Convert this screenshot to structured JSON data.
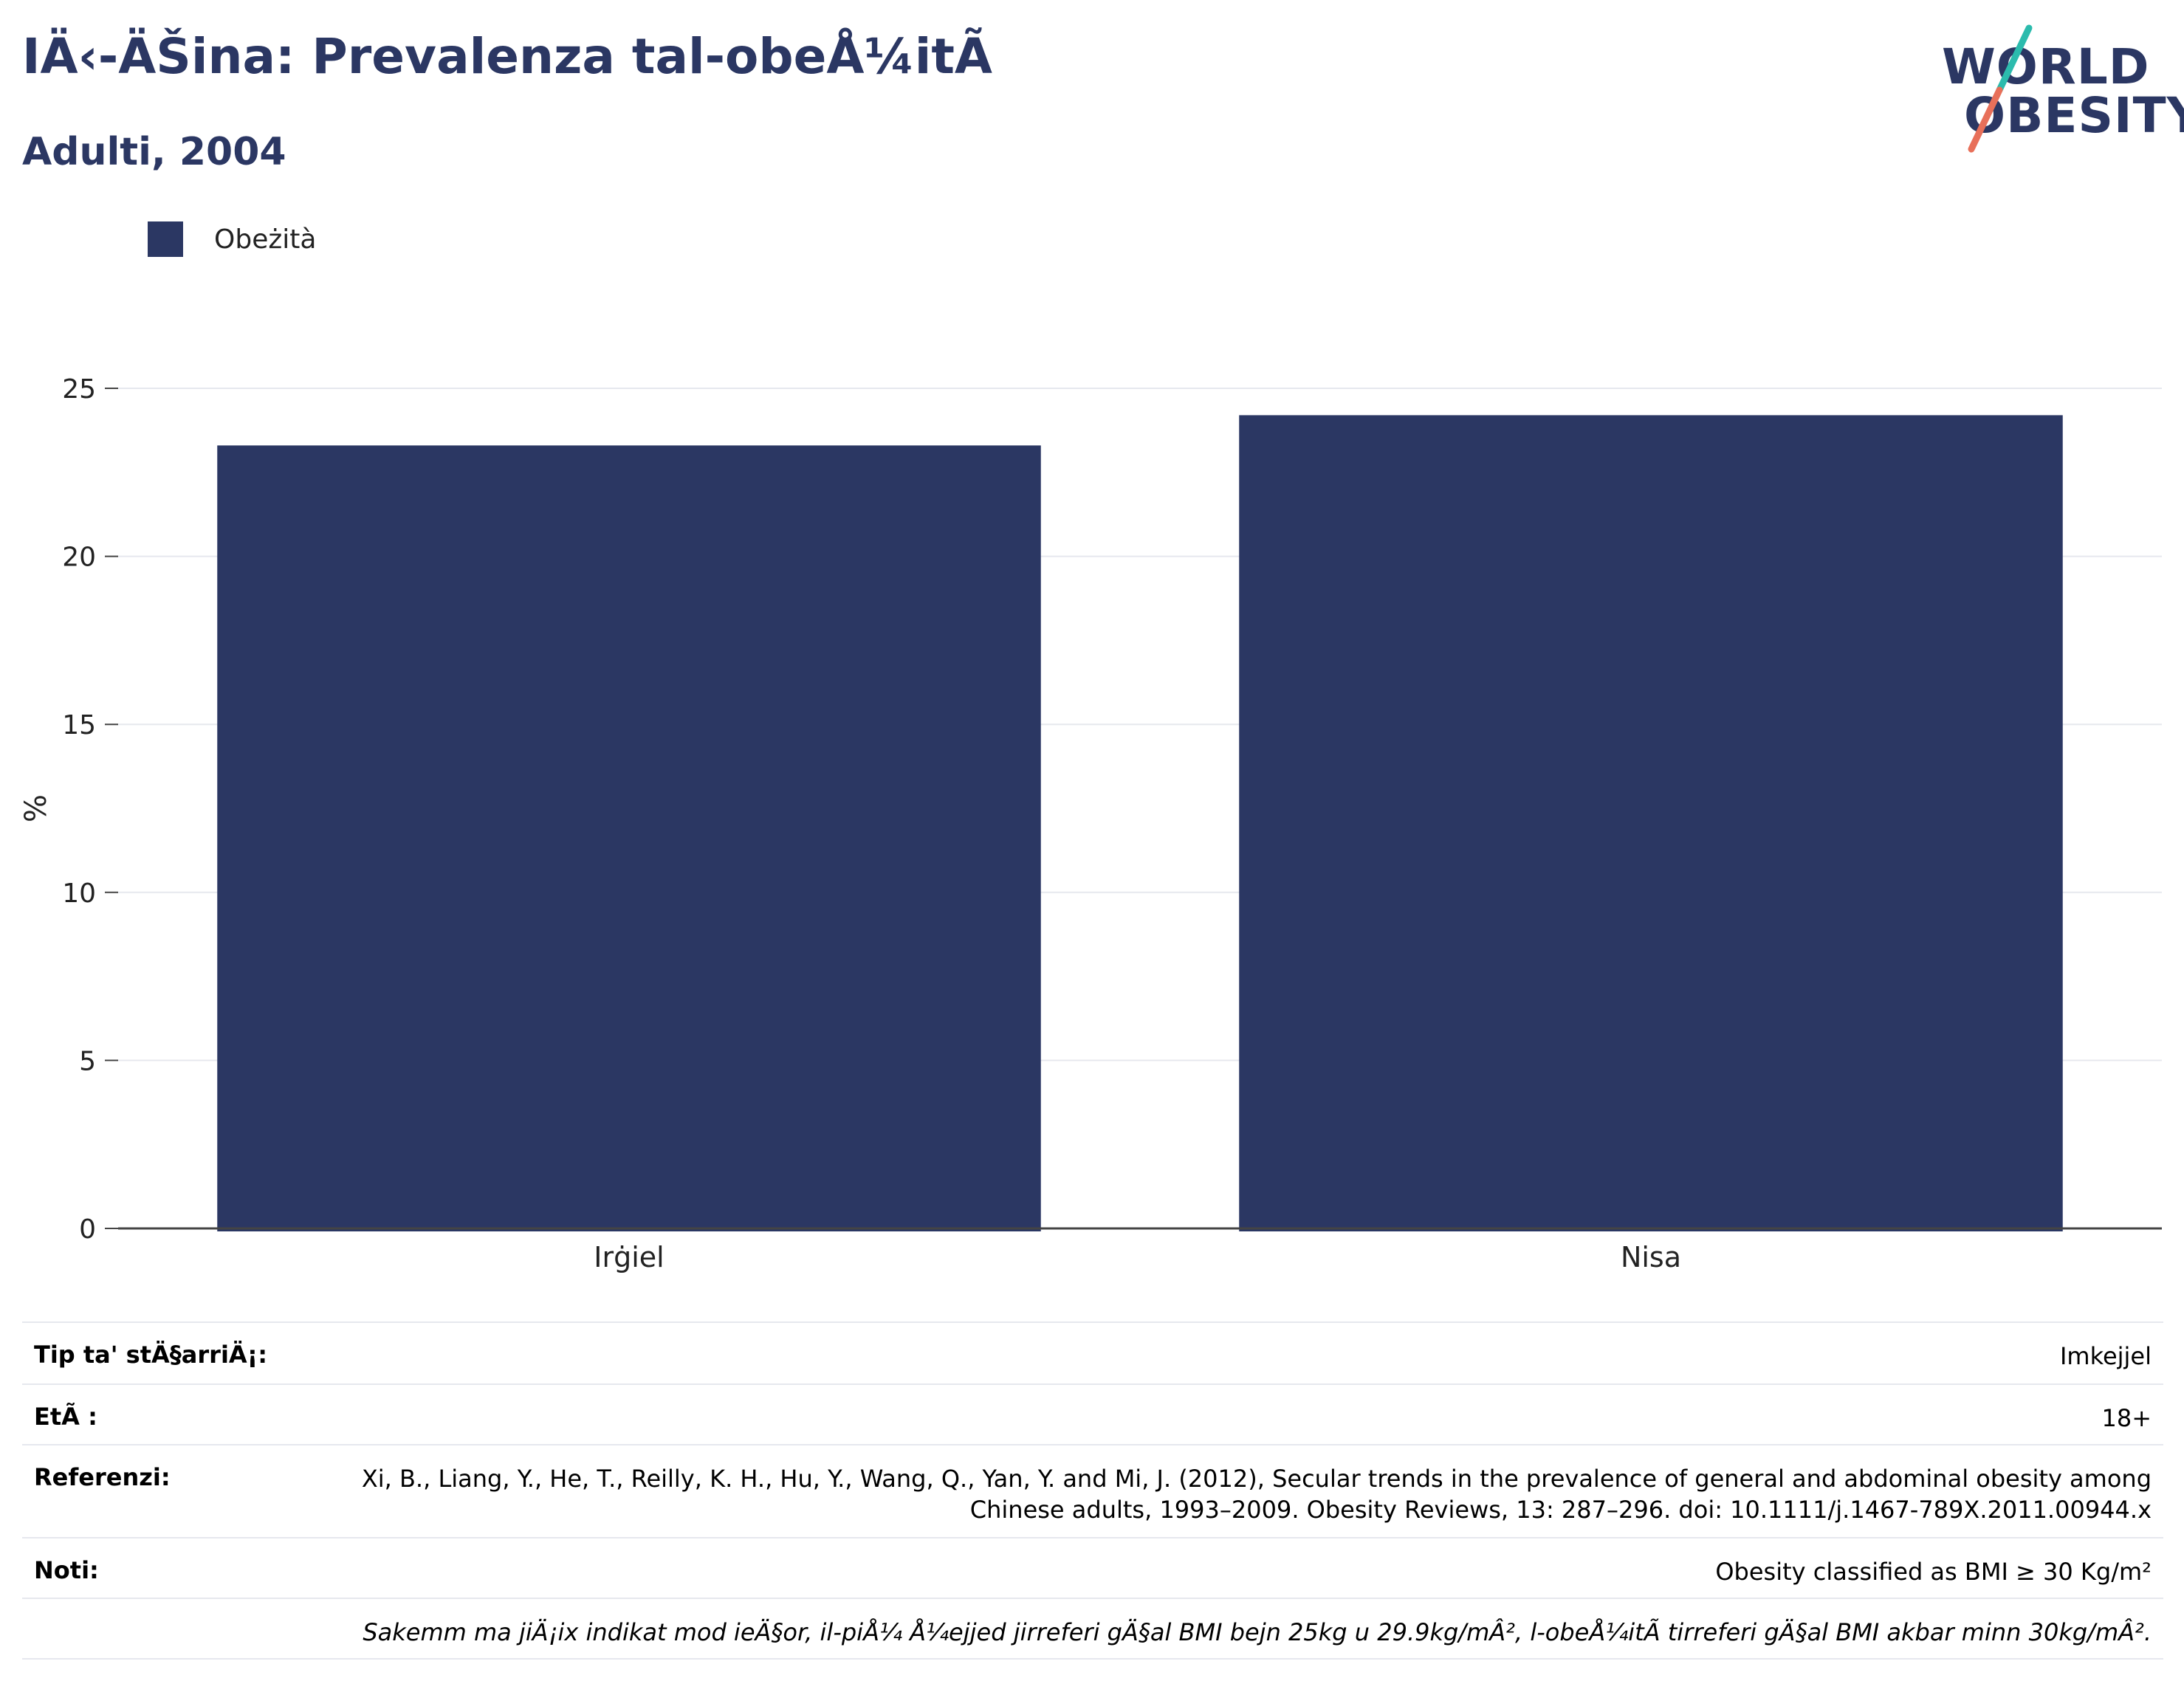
{
  "header": {
    "title": "IÄ‹-ÄŠina: Prevalenza tal-obeÅ¼itÃ",
    "subtitle": "Adulti, 2004"
  },
  "logo": {
    "line1": "WORLD",
    "line2": "OBESITY",
    "colors": {
      "text": "#2b3763",
      "slash_top": "#2bbbad",
      "slash_bottom": "#e8705a"
    }
  },
  "colors": {
    "bar": "#2b3763",
    "grid": "#e6e8ee",
    "axis": "#444444"
  },
  "chart_data": {
    "type": "bar",
    "categories": [
      "Irġiel",
      "Nisa"
    ],
    "series": [
      {
        "name": "Obeżità",
        "values": [
          23.3,
          24.2
        ]
      }
    ],
    "xlabel": "",
    "ylabel": "%",
    "ylim": [
      0,
      25
    ],
    "yticks": [
      0,
      5,
      10,
      15,
      20,
      25
    ],
    "grid": true,
    "legend_position": "top-left"
  },
  "info": {
    "rows": [
      {
        "label": "Tip ta' stÄ§arriÄ¡:",
        "value": "Imkejjel"
      },
      {
        "label": "EtÃ :",
        "value": "18+"
      },
      {
        "label": "Referenzi:",
        "value": "Xi, B., Liang, Y., He, T., Reilly, K. H., Hu, Y., Wang, Q., Yan, Y. and Mi, J. (2012), Secular trends in the prevalence of general and abdominal obesity among Chinese adults, 1993–2009. Obesity Reviews, 13: 287–296. doi: 10.1111/j.1467-789X.2011.00944.x"
      },
      {
        "label": "Noti:",
        "value": "Obesity classified as BMI ≥ 30 Kg/m²"
      }
    ],
    "footnote": "Sakemm ma jiÄ¡ix indikat mod ieÄ§or, il-piÅ¼ Å¼ejjed jirreferi gÄ§al BMI bejn 25kg u 29.9kg/mÂ², l-obeÅ¼itÃ  tirreferi gÄ§al BMI akbar minn 30kg/mÂ²."
  }
}
